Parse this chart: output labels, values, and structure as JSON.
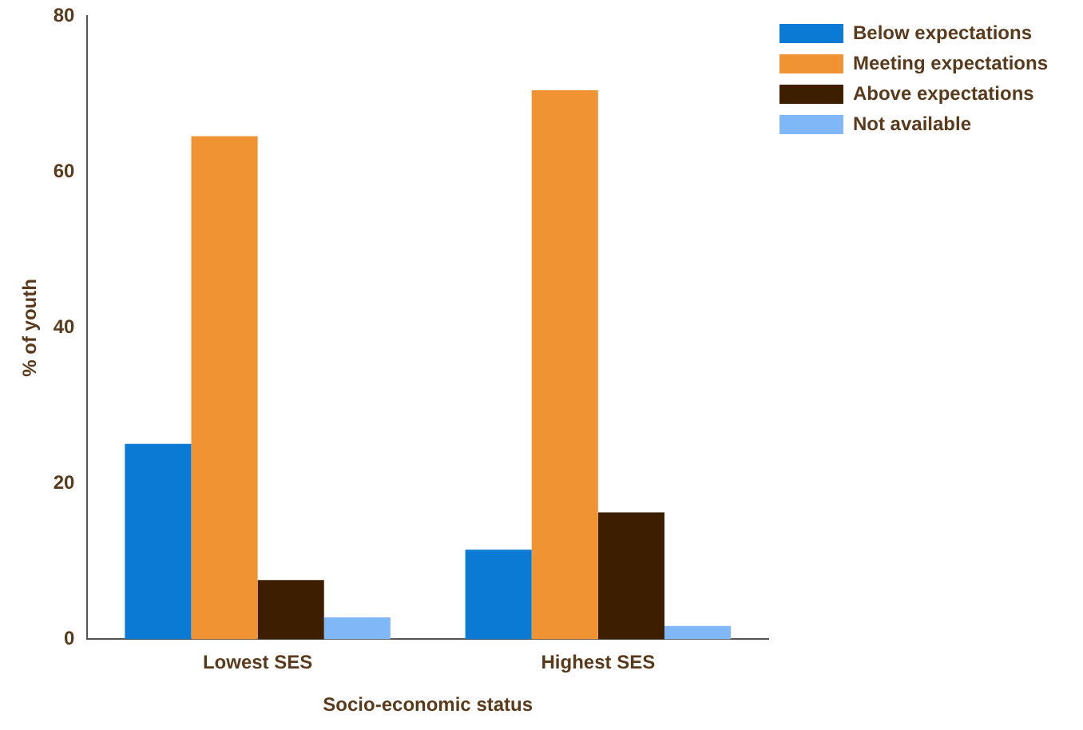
{
  "chart_data": {
    "type": "bar",
    "xlabel": "Socio-economic status",
    "ylabel": "% of youth",
    "categories": [
      "Lowest SES",
      "Highest SES"
    ],
    "series": [
      {
        "name": "Below expectations",
        "color": "#0a7ad4",
        "values": [
          25.1,
          11.5
        ]
      },
      {
        "name": "Meeting expectations",
        "color": "#f09433",
        "values": [
          64.6,
          70.5
        ]
      },
      {
        "name": "Above expectations",
        "color": "#3d1f00",
        "values": [
          7.6,
          16.3
        ]
      },
      {
        "name": "Not available",
        "color": "#80b8f7",
        "values": [
          2.8,
          1.7
        ]
      }
    ],
    "ylim": [
      0,
      80
    ],
    "yticks": [
      0,
      20,
      40,
      60,
      80
    ],
    "grid": false,
    "legend": "top right"
  }
}
